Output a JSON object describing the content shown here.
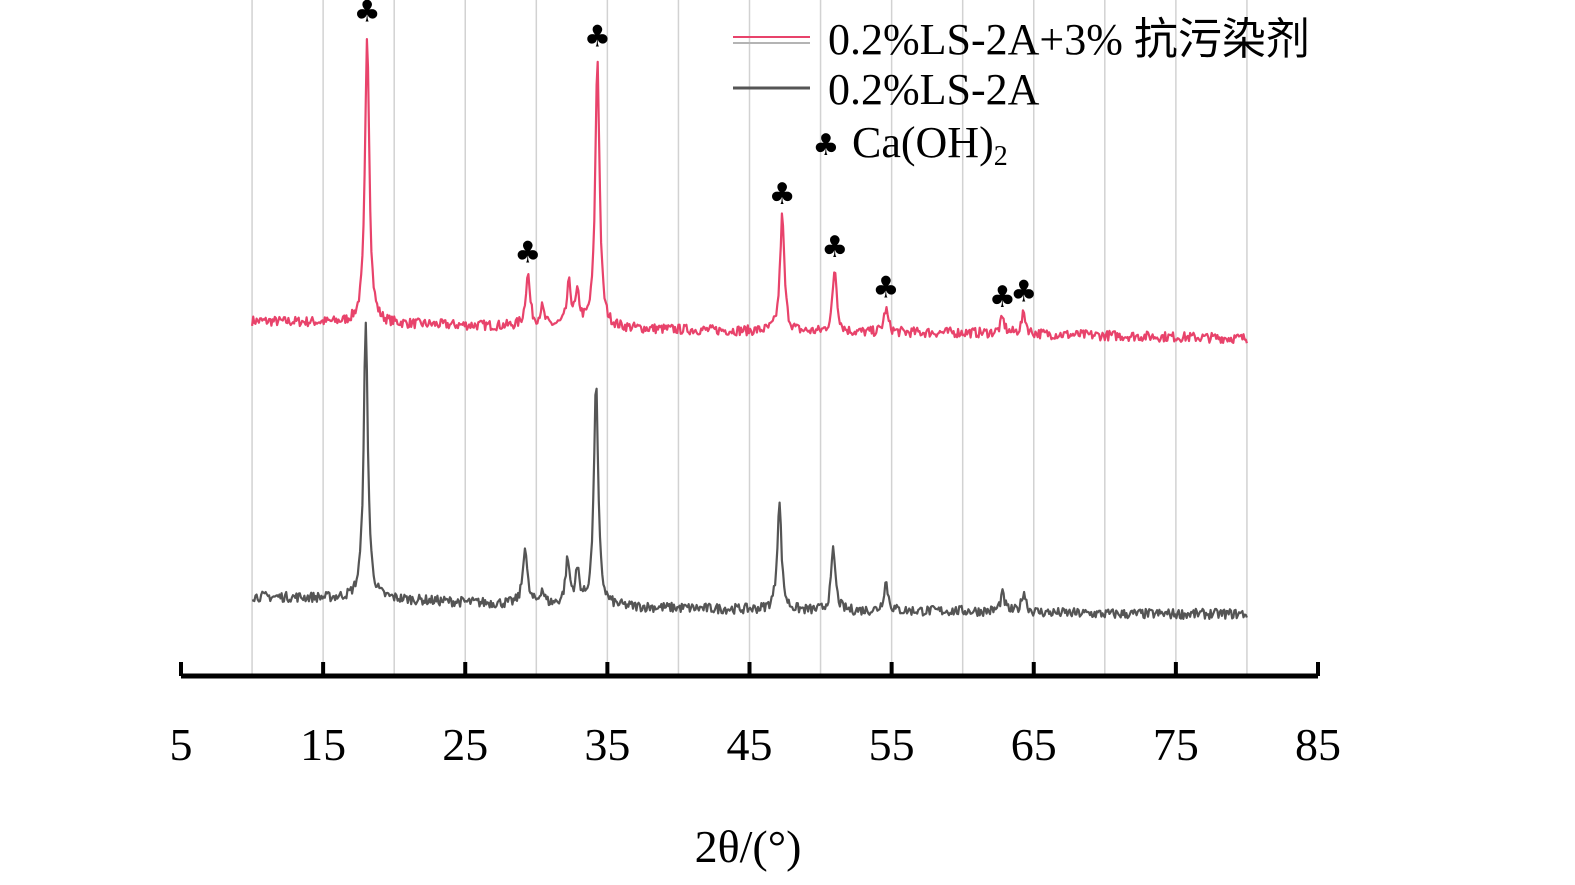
{
  "chart_data": {
    "type": "line",
    "xlabel": "2θ/(°)",
    "xlim": [
      5,
      85
    ],
    "xticks": [
      5,
      15,
      25,
      35,
      45,
      55,
      65,
      75,
      85
    ],
    "grid": true,
    "legend_position": "top-right",
    "series": [
      {
        "name": "0.2%LS-2A+3% 抗污染剂",
        "color": "#e8436b",
        "offset": 1,
        "baseline": [
          [
            10,
            0.1
          ],
          [
            20,
            0.09
          ],
          [
            30,
            0.08
          ],
          [
            40,
            0.07
          ],
          [
            50,
            0.06
          ],
          [
            60,
            0.06
          ],
          [
            70,
            0.05
          ],
          [
            80,
            0.04
          ]
        ],
        "peaks": [
          [
            18.1,
            1.0
          ],
          [
            29.4,
            0.18
          ],
          [
            30.4,
            0.06
          ],
          [
            32.3,
            0.14
          ],
          [
            32.9,
            0.1
          ],
          [
            34.3,
            0.93
          ],
          [
            47.3,
            0.4
          ],
          [
            51.0,
            0.22
          ],
          [
            54.6,
            0.08
          ],
          [
            62.8,
            0.05
          ],
          [
            64.3,
            0.07
          ]
        ]
      },
      {
        "name": "0.2%LS-2A",
        "color": "#555555",
        "offset": 0,
        "baseline": [
          [
            10,
            0.15
          ],
          [
            20,
            0.14
          ],
          [
            30,
            0.12
          ],
          [
            40,
            0.11
          ],
          [
            50,
            0.1
          ],
          [
            60,
            0.1
          ],
          [
            70,
            0.09
          ],
          [
            80,
            0.09
          ]
        ],
        "peaks": [
          [
            18.0,
            0.94
          ],
          [
            29.2,
            0.2
          ],
          [
            30.4,
            0.05
          ],
          [
            32.2,
            0.15
          ],
          [
            32.9,
            0.11
          ],
          [
            34.2,
            0.77
          ],
          [
            47.1,
            0.37
          ],
          [
            50.9,
            0.21
          ],
          [
            54.6,
            0.1
          ],
          [
            62.8,
            0.06
          ],
          [
            64.3,
            0.07
          ]
        ]
      }
    ],
    "markers": {
      "label": "Ca(OH)2",
      "symbol": "♣",
      "positions": [
        18.1,
        29.4,
        34.3,
        47.3,
        51.0,
        54.6,
        62.8,
        64.3
      ]
    }
  },
  "legend": {
    "items": [
      {
        "label": "0.2%LS-2A+3% 抗污染剂"
      },
      {
        "label": "0.2%LS-2A"
      }
    ],
    "marker_text": "Ca(OH)",
    "marker_sub": "2"
  }
}
